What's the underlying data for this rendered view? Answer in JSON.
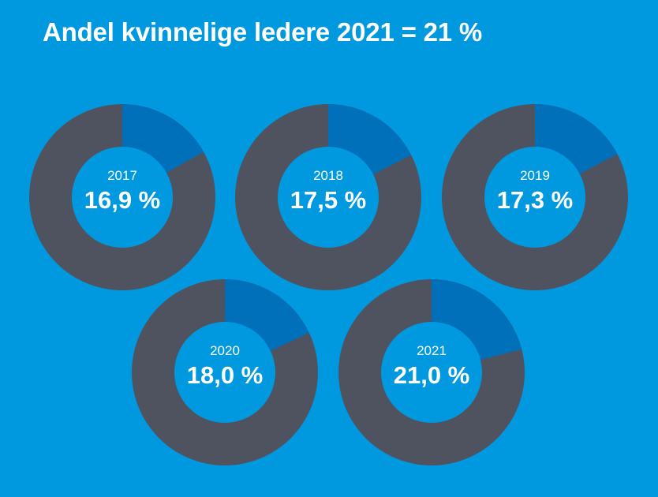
{
  "title": "Andel kvinnelige ledere 2021 = 21 %",
  "colors": {
    "background": "#0099e0",
    "remainder": "#4f5360",
    "share": "#0070bb",
    "center": "#0099e0",
    "text": "#ffffff"
  },
  "chart_data": {
    "type": "pie",
    "variant": "donut",
    "title": "Andel kvinnelige ledere 2021 = 21 %",
    "unit": "%",
    "items": [
      {
        "year": "2017",
        "value": 16.9,
        "label": "16,9 %"
      },
      {
        "year": "2018",
        "value": 17.5,
        "label": "17,5 %"
      },
      {
        "year": "2019",
        "value": 17.3,
        "label": "17,3 %"
      },
      {
        "year": "2020",
        "value": 18.0,
        "label": "18,0 %"
      },
      {
        "year": "2021",
        "value": 21.0,
        "label": "21,0 %"
      }
    ]
  }
}
